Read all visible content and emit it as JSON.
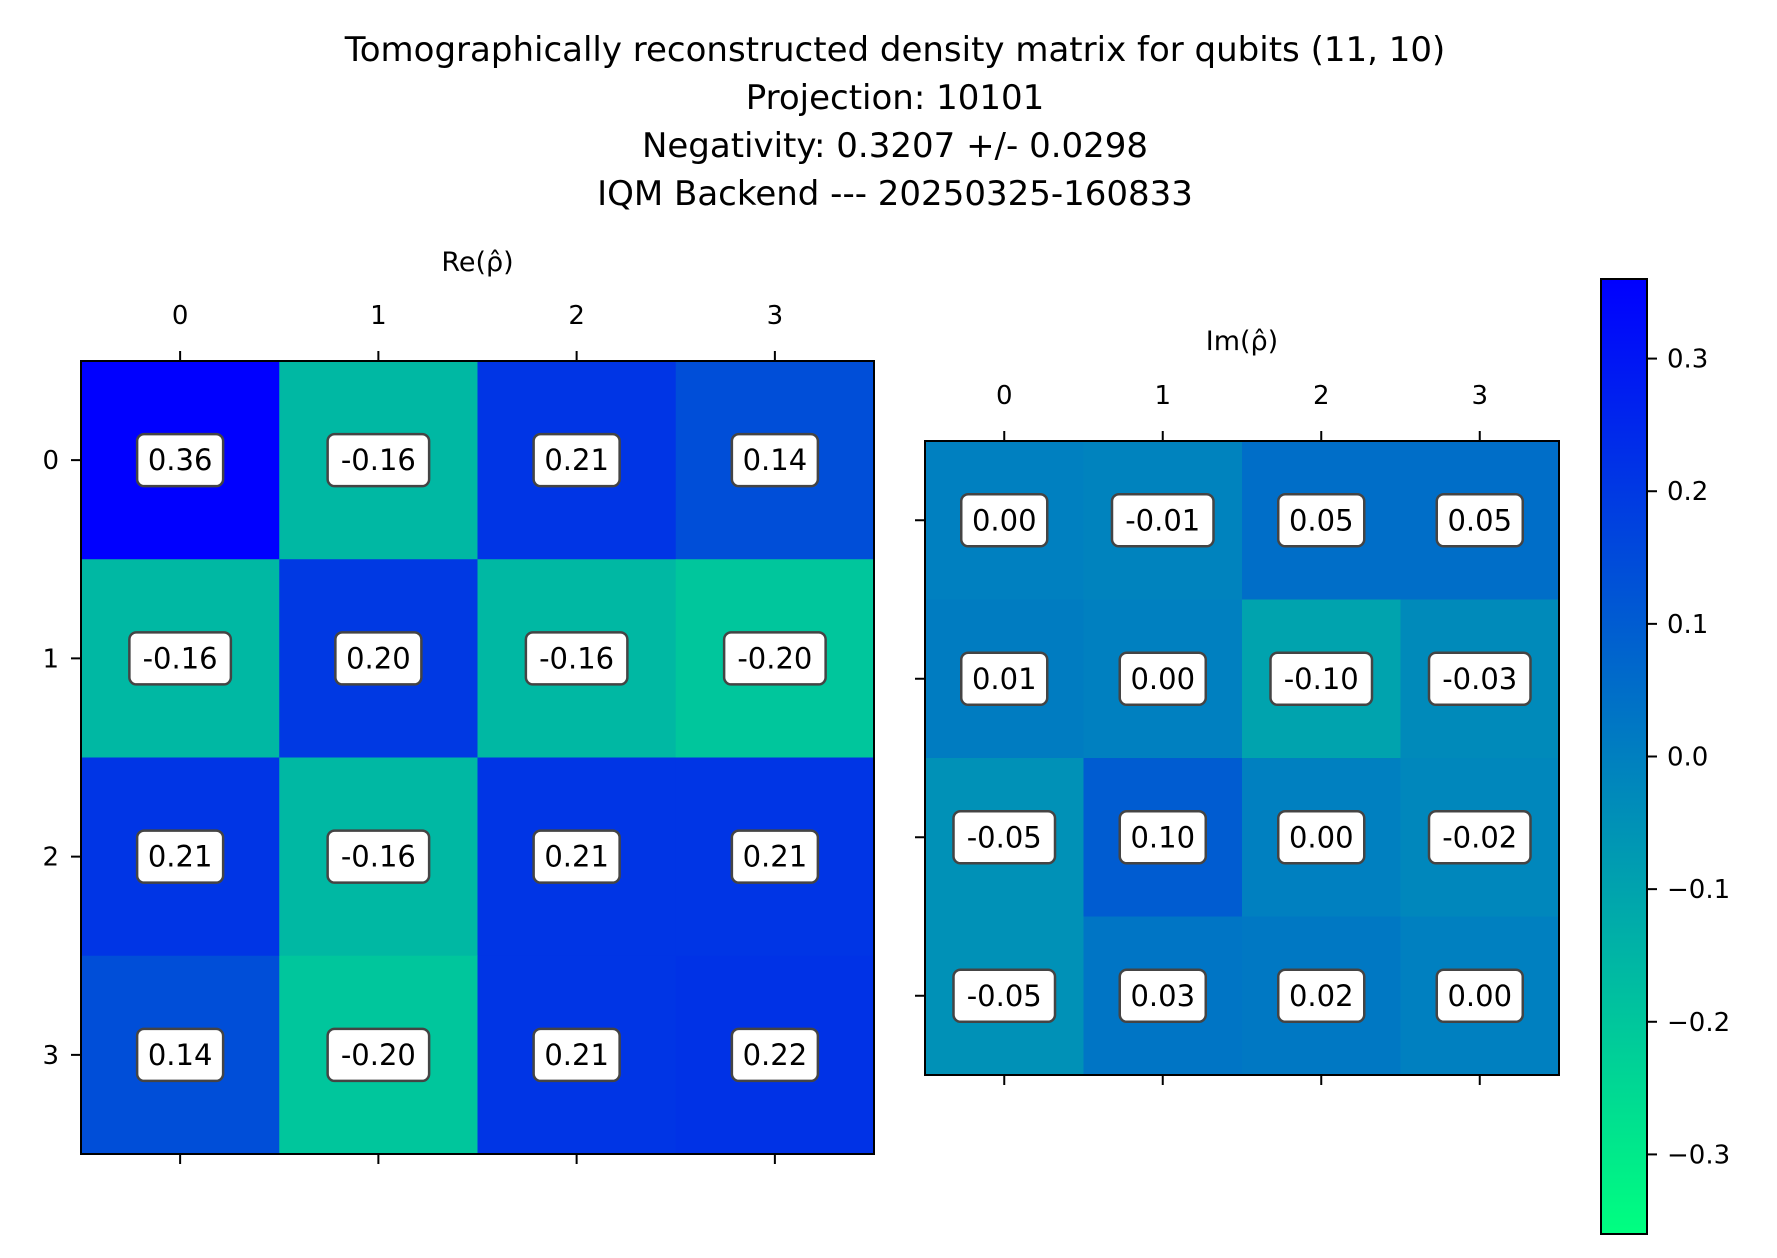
{
  "figure": {
    "title_lines": [
      "Tomographically reconstructed density matrix for qubits (11, 10)",
      "Projection: 10101",
      "Negativity: 0.3207 +/- 0.0298",
      "IQM Backend --- 20250325-160833"
    ]
  },
  "colormap": {
    "name": "winter",
    "low_color": "#00ff80",
    "high_color": "#0000ff",
    "vmin": -0.36,
    "vmax": 0.36,
    "ticks": [
      0.3,
      0.2,
      0.1,
      0.0,
      -0.1,
      -0.2,
      -0.3
    ],
    "tick_labels": [
      "0.3",
      "0.2",
      "0.1",
      "0.0",
      "−0.1",
      "−0.2",
      "−0.3"
    ]
  },
  "chart_data": [
    {
      "type": "heatmap",
      "title": "Re(ρ̂)",
      "x_ticks": [
        "0",
        "1",
        "2",
        "3"
      ],
      "y_ticks": [
        "0",
        "1",
        "2",
        "3"
      ],
      "show_y_tick_labels": true,
      "values": [
        [
          0.36,
          -0.16,
          0.21,
          0.14
        ],
        [
          -0.16,
          0.2,
          -0.16,
          -0.2
        ],
        [
          0.21,
          -0.16,
          0.21,
          0.21
        ],
        [
          0.14,
          -0.2,
          0.21,
          0.22
        ]
      ],
      "cell_labels": [
        [
          "0.36",
          "-0.16",
          "0.21",
          "0.14"
        ],
        [
          "-0.16",
          "0.20",
          "-0.16",
          "-0.20"
        ],
        [
          "0.21",
          "-0.16",
          "0.21",
          "0.21"
        ],
        [
          "0.14",
          "-0.20",
          "0.21",
          "0.22"
        ]
      ]
    },
    {
      "type": "heatmap",
      "title": "Im(ρ̂)",
      "x_ticks": [
        "0",
        "1",
        "2",
        "3"
      ],
      "y_ticks": [
        "0",
        "1",
        "2",
        "3"
      ],
      "show_y_tick_labels": false,
      "values": [
        [
          0.0,
          -0.01,
          0.05,
          0.05
        ],
        [
          0.01,
          0.0,
          -0.1,
          -0.03
        ],
        [
          -0.05,
          0.1,
          0.0,
          -0.02
        ],
        [
          -0.05,
          0.03,
          0.02,
          0.0
        ]
      ],
      "cell_labels": [
        [
          "0.00",
          "-0.01",
          "0.05",
          "0.05"
        ],
        [
          "0.01",
          "0.00",
          "-0.10",
          "-0.03"
        ],
        [
          "-0.05",
          "0.10",
          "0.00",
          "-0.02"
        ],
        [
          "-0.05",
          "0.03",
          "0.02",
          "0.00"
        ]
      ]
    }
  ]
}
